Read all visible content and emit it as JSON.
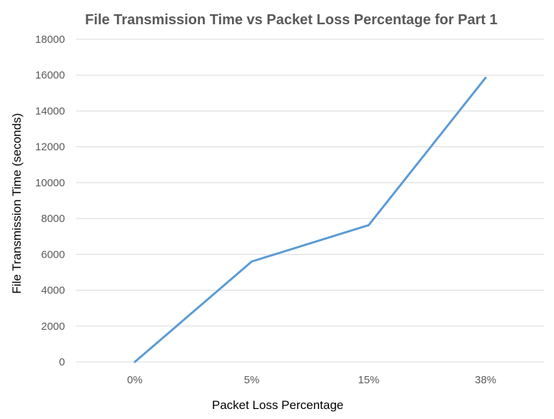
{
  "chart_data": {
    "type": "line",
    "title": "File Transmission Time vs Packet Loss Percentage for Part 1",
    "xlabel": "Packet Loss Percentage",
    "ylabel": "File Transmission Time (seconds)",
    "categories": [
      "0%",
      "5%",
      "15%",
      "38%"
    ],
    "series": [
      {
        "values": [
          0,
          5600,
          7630,
          15850
        ],
        "color": "#5b9bd5"
      }
    ],
    "ylim": [
      0,
      18000
    ],
    "yticks": [
      0,
      2000,
      4000,
      6000,
      8000,
      10000,
      12000,
      14000,
      16000,
      18000
    ],
    "grid": true,
    "legend": "none"
  }
}
